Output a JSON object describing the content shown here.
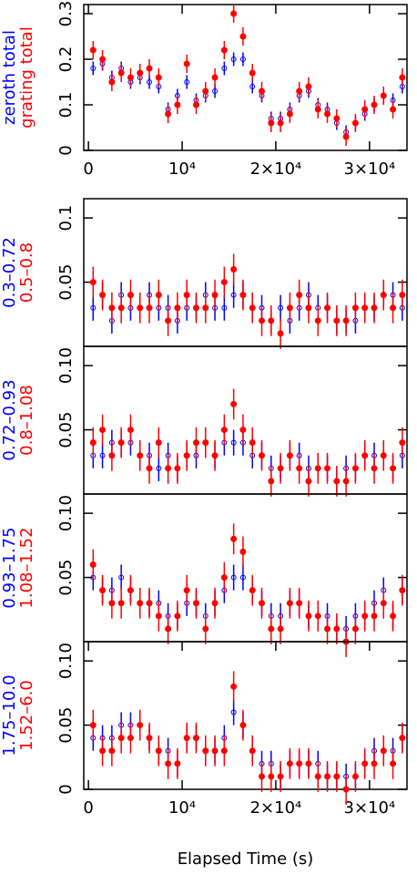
{
  "chart_data": [
    {
      "type": "scatter",
      "x": [
        500,
        1500,
        2500,
        3500,
        4500,
        5500,
        6500,
        7500,
        8500,
        9500,
        10500,
        11500,
        12500,
        13500,
        14500,
        15500,
        16500,
        17500,
        18500,
        19500,
        20500,
        21500,
        22500,
        23500,
        24500,
        25500,
        26500,
        27500,
        28500,
        29500,
        30500,
        31500,
        32500,
        33500
      ],
      "xlim": [
        -500,
        34000
      ],
      "ylim": [
        0,
        0.32
      ],
      "yticks": [
        0,
        0.1,
        0.2,
        0.3
      ],
      "xticks": [
        0,
        {
          "value": 10000,
          "label": "10⁴"
        },
        {
          "value": 20000,
          "label": "2×10⁴"
        },
        {
          "value": 30000,
          "label": "3×10⁴"
        }
      ],
      "series": [
        {
          "name": "zeroth total",
          "color": "#0000ff",
          "error": 0.015,
          "values": [
            0.18,
            0.19,
            0.16,
            0.18,
            0.15,
            0.16,
            0.15,
            0.14,
            0.09,
            0.12,
            0.15,
            0.11,
            0.12,
            0.13,
            0.18,
            0.2,
            0.2,
            0.14,
            0.12,
            0.07,
            0.07,
            0.09,
            0.12,
            0.13,
            0.1,
            0.09,
            0.06,
            0.04,
            0.06,
            0.08,
            0.1,
            0.12,
            0.11,
            0.14
          ]
        },
        {
          "name": "grating total",
          "color": "#ff0000",
          "error": 0.02,
          "values": [
            0.22,
            0.2,
            0.15,
            0.17,
            0.16,
            0.17,
            0.18,
            0.16,
            0.08,
            0.1,
            0.19,
            0.1,
            0.13,
            0.16,
            0.22,
            0.3,
            0.25,
            0.17,
            0.13,
            0.06,
            0.06,
            0.08,
            0.13,
            0.14,
            0.09,
            0.08,
            0.07,
            0.03,
            0.06,
            0.09,
            0.1,
            0.12,
            0.09,
            0.16
          ]
        }
      ]
    },
    {
      "type": "scatter",
      "x": [
        500,
        1500,
        2500,
        3500,
        4500,
        5500,
        6500,
        7500,
        8500,
        9500,
        10500,
        11500,
        12500,
        13500,
        14500,
        15500,
        16500,
        17500,
        18500,
        19500,
        20500,
        21500,
        22500,
        23500,
        24500,
        25500,
        26500,
        27500,
        28500,
        29500,
        30500,
        31500,
        32500,
        33500
      ],
      "xlim": [
        -500,
        34000
      ],
      "ylim": [
        0,
        0.115
      ],
      "yticks": [
        0.05,
        0.1
      ],
      "series": [
        {
          "name": "0.3–0.72",
          "color": "#0000ff",
          "error": 0.01,
          "values": [
            0.03,
            0.04,
            0.02,
            0.04,
            0.03,
            0.03,
            0.04,
            0.03,
            0.03,
            0.02,
            0.03,
            0.03,
            0.04,
            0.03,
            0.03,
            0.04,
            0.04,
            0.03,
            0.03,
            0.02,
            0.03,
            0.02,
            0.03,
            0.04,
            0.03,
            0.03,
            0.02,
            0.02,
            0.02,
            0.03,
            0.03,
            0.04,
            0.04,
            0.03
          ]
        },
        {
          "name": "0.5–0.8",
          "color": "#ff0000",
          "error": 0.012,
          "values": [
            0.05,
            0.04,
            0.03,
            0.03,
            0.04,
            0.03,
            0.03,
            0.04,
            0.02,
            0.03,
            0.04,
            0.03,
            0.03,
            0.04,
            0.05,
            0.06,
            0.04,
            0.03,
            0.02,
            0.02,
            0.01,
            0.03,
            0.04,
            0.03,
            0.02,
            0.03,
            0.02,
            0.02,
            0.03,
            0.03,
            0.03,
            0.04,
            0.03,
            0.04
          ]
        }
      ]
    },
    {
      "type": "scatter",
      "x": [
        500,
        1500,
        2500,
        3500,
        4500,
        5500,
        6500,
        7500,
        8500,
        9500,
        10500,
        11500,
        12500,
        13500,
        14500,
        15500,
        16500,
        17500,
        18500,
        19500,
        20500,
        21500,
        22500,
        23500,
        24500,
        25500,
        26500,
        27500,
        28500,
        29500,
        30500,
        31500,
        32500,
        33500
      ],
      "xlim": [
        -500,
        34000
      ],
      "ylim": [
        0,
        0.115
      ],
      "yticks": [
        0.05,
        {
          "value": 0.1,
          "label": "0.10"
        }
      ],
      "series": [
        {
          "name": "0.72–0.93",
          "color": "#0000ff",
          "error": 0.01,
          "values": [
            0.03,
            0.03,
            0.04,
            0.04,
            0.04,
            0.03,
            0.03,
            0.02,
            0.03,
            0.02,
            0.03,
            0.03,
            0.04,
            0.03,
            0.04,
            0.04,
            0.04,
            0.03,
            0.03,
            0.02,
            0.02,
            0.03,
            0.03,
            0.02,
            0.02,
            0.02,
            0.01,
            0.02,
            0.02,
            0.03,
            0.03,
            0.03,
            0.02,
            0.03
          ]
        },
        {
          "name": "0.8–1.08",
          "color": "#ff0000",
          "error": 0.012,
          "values": [
            0.04,
            0.05,
            0.03,
            0.04,
            0.05,
            0.03,
            0.02,
            0.04,
            0.02,
            0.02,
            0.03,
            0.04,
            0.04,
            0.03,
            0.05,
            0.07,
            0.05,
            0.04,
            0.03,
            0.01,
            0.02,
            0.03,
            0.02,
            0.01,
            0.02,
            0.02,
            0.01,
            0.01,
            0.02,
            0.03,
            0.02,
            0.03,
            0.02,
            0.04
          ]
        }
      ]
    },
    {
      "type": "scatter",
      "x": [
        500,
        1500,
        2500,
        3500,
        4500,
        5500,
        6500,
        7500,
        8500,
        9500,
        10500,
        11500,
        12500,
        13500,
        14500,
        15500,
        16500,
        17500,
        18500,
        19500,
        20500,
        21500,
        22500,
        23500,
        24500,
        25500,
        26500,
        27500,
        28500,
        29500,
        30500,
        31500,
        32500,
        33500
      ],
      "xlim": [
        -500,
        34000
      ],
      "ylim": [
        0,
        0.115
      ],
      "yticks": [
        0.05,
        {
          "value": 0.1,
          "label": "0.10"
        }
      ],
      "series": [
        {
          "name": "0.93–1.75",
          "color": "#0000ff",
          "error": 0.01,
          "values": [
            0.05,
            0.04,
            0.04,
            0.05,
            0.04,
            0.03,
            0.03,
            0.03,
            0.02,
            0.02,
            0.03,
            0.03,
            0.02,
            0.03,
            0.04,
            0.05,
            0.05,
            0.04,
            0.03,
            0.02,
            0.02,
            0.03,
            0.03,
            0.02,
            0.02,
            0.02,
            0.01,
            0.01,
            0.02,
            0.02,
            0.03,
            0.04,
            0.02,
            0.04
          ]
        },
        {
          "name": "1.08–1.52",
          "color": "#ff0000",
          "error": 0.012,
          "values": [
            0.06,
            0.04,
            0.03,
            0.03,
            0.04,
            0.03,
            0.03,
            0.02,
            0.01,
            0.02,
            0.04,
            0.03,
            0.01,
            0.03,
            0.05,
            0.08,
            0.07,
            0.04,
            0.03,
            0.01,
            0.01,
            0.03,
            0.03,
            0.02,
            0.02,
            0.01,
            0.01,
            0.0,
            0.01,
            0.02,
            0.02,
            0.03,
            0.02,
            0.04
          ]
        }
      ]
    },
    {
      "type": "scatter",
      "x": [
        500,
        1500,
        2500,
        3500,
        4500,
        5500,
        6500,
        7500,
        8500,
        9500,
        10500,
        11500,
        12500,
        13500,
        14500,
        15500,
        16500,
        17500,
        18500,
        19500,
        20500,
        21500,
        22500,
        23500,
        24500,
        25500,
        26500,
        27500,
        28500,
        29500,
        30500,
        31500,
        32500,
        33500
      ],
      "xlim": [
        -500,
        34000
      ],
      "ylim": [
        0,
        0.115
      ],
      "yticks": [
        0,
        0.05,
        {
          "value": 0.1,
          "label": "0.10"
        }
      ],
      "xticks": [
        0,
        {
          "value": 10000,
          "label": "10⁴"
        },
        {
          "value": 20000,
          "label": "2×10⁴"
        },
        {
          "value": 30000,
          "label": "3×10⁴"
        }
      ],
      "xlabel": "Elapsed Time (s)",
      "series": [
        {
          "name": "1.75–10.0",
          "color": "#0000ff",
          "error": 0.01,
          "values": [
            0.04,
            0.04,
            0.04,
            0.05,
            0.05,
            0.05,
            0.04,
            0.03,
            0.03,
            0.02,
            0.04,
            0.04,
            0.03,
            0.03,
            0.04,
            0.06,
            0.05,
            0.03,
            0.02,
            0.02,
            0.01,
            0.02,
            0.02,
            0.02,
            0.02,
            0.01,
            0.01,
            0.01,
            0.01,
            0.02,
            0.03,
            0.03,
            0.03,
            0.04
          ]
        },
        {
          "name": "1.52–6.0",
          "color": "#ff0000",
          "error": 0.012,
          "values": [
            0.05,
            0.03,
            0.03,
            0.04,
            0.04,
            0.05,
            0.04,
            0.03,
            0.02,
            0.02,
            0.04,
            0.04,
            0.03,
            0.03,
            0.03,
            0.08,
            0.05,
            0.03,
            0.01,
            0.01,
            0.01,
            0.02,
            0.02,
            0.02,
            0.01,
            0.01,
            0.01,
            0.0,
            0.01,
            0.02,
            0.02,
            0.03,
            0.02,
            0.04
          ]
        }
      ]
    }
  ]
}
